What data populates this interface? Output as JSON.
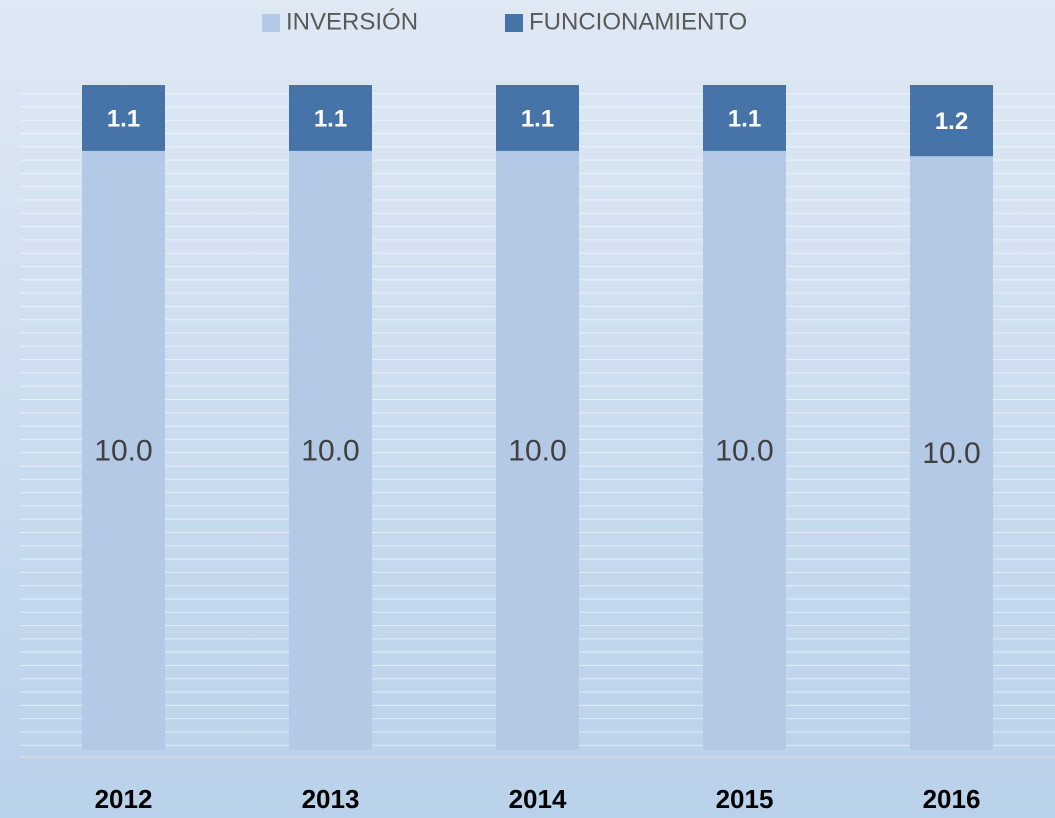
{
  "chart_data": {
    "type": "bar",
    "stacking": "percent",
    "categories": [
      "2012",
      "2013",
      "2014",
      "2015",
      "2016"
    ],
    "series": [
      {
        "name": "INVERSIÓN",
        "color": "#b4c9e5",
        "values": [
          10,
          10,
          10,
          10,
          10
        ],
        "value_labels": [
          "10.0",
          "10.0",
          "10.0",
          "10.0",
          "10.0"
        ]
      },
      {
        "name": "FUNCIONAMIENTO",
        "color": "#4674a8",
        "values": [
          1.1,
          1.1,
          1.1,
          1.1,
          1.2
        ]
      }
    ],
    "legend": "top"
  }
}
